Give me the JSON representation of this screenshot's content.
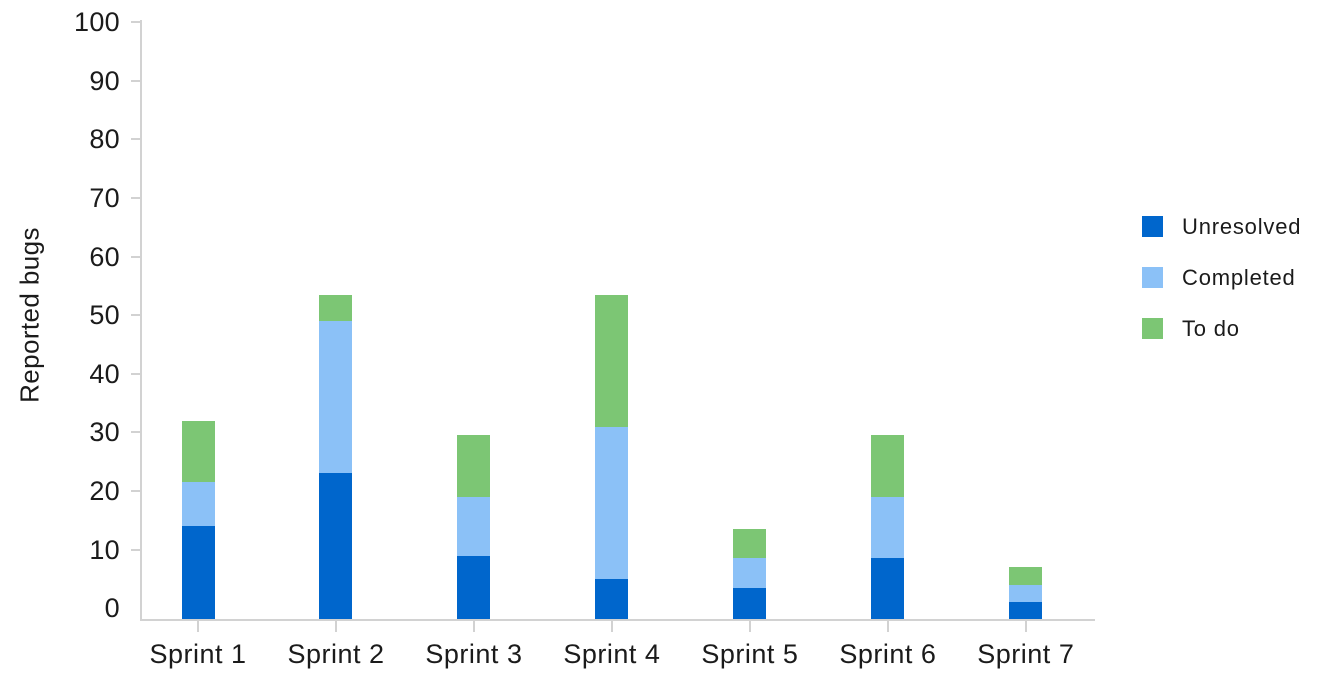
{
  "chart_data": {
    "type": "bar",
    "stacked": true,
    "title": "",
    "xlabel": "",
    "ylabel": "Reported bugs",
    "categories": [
      "Sprint 1",
      "Sprint 2",
      "Sprint 3",
      "Sprint 4",
      "Sprint 5",
      "Sprint 6",
      "Sprint 7"
    ],
    "series": [
      {
        "name": "Unresolved",
        "color": "#0066cc",
        "values": [
          14,
          23,
          9,
          5,
          3.5,
          8.5,
          1
        ]
      },
      {
        "name": "Completed",
        "color": "#8bc1f7",
        "values": [
          7.5,
          26,
          10,
          26,
          5,
          10.5,
          3
        ]
      },
      {
        "name": "To do",
        "color": "#7cc674",
        "values": [
          10.5,
          4.5,
          10.5,
          22.5,
          5,
          10.5,
          3
        ]
      }
    ],
    "stack_totals": [
      32,
      53.5,
      29.5,
      53.5,
      13.5,
      29.5,
      7
    ],
    "y_ticks": [
      0,
      10,
      20,
      30,
      40,
      50,
      60,
      70,
      80,
      90,
      100
    ],
    "ylim": [
      0,
      100
    ],
    "bar_base_value": -2,
    "grid": false,
    "legend_position": "right",
    "axis_color": "#d2d2d2",
    "label_color": "#1b1b1b"
  }
}
